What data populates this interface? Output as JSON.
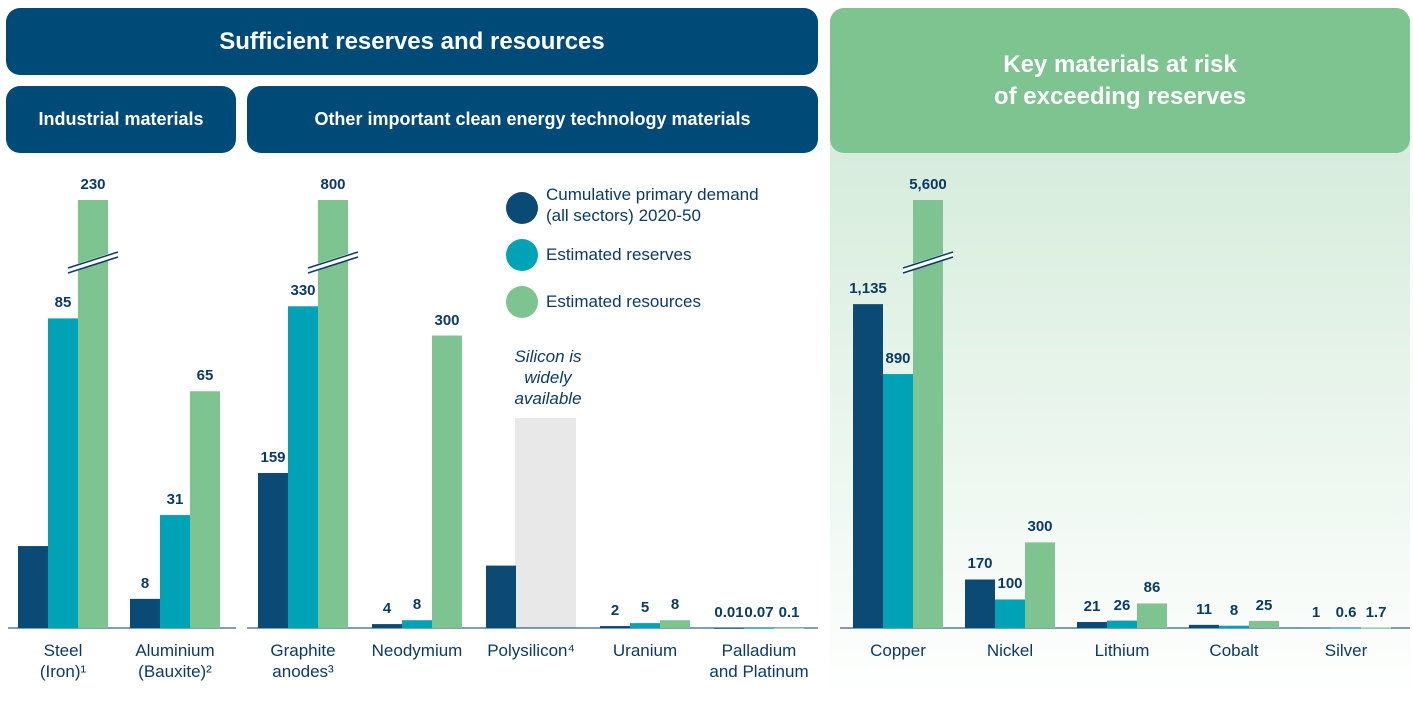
{
  "chart_data": {
    "type": "bar",
    "group_title": "Sufficient reserves and resources",
    "series": [
      {
        "name": "Cumulative primary demand\n(all sectors) 2020-50",
        "color": "#0a4a75",
        "values": [
          22.5,
          8,
          159,
          4,
          64,
          2,
          0.01,
          1135,
          170,
          21,
          11,
          1
        ],
        "value_labels": [
          null,
          "8",
          "159",
          "4",
          null,
          "2",
          "0.01",
          "1,135",
          "170",
          "21",
          "11",
          "1"
        ]
      },
      {
        "name": "Estimated reserves",
        "color": "#00a3b5",
        "values": [
          85,
          31,
          330,
          8,
          null,
          5,
          0.07,
          890,
          100,
          26,
          8,
          0.6
        ],
        "value_labels": [
          "85",
          "31",
          "330",
          "8",
          null,
          "5",
          "0.07",
          "890",
          "100",
          "26",
          "8",
          "0.6"
        ]
      },
      {
        "name": "Estimated resources",
        "color": "#7ec491",
        "values": [
          230,
          65,
          800,
          300,
          null,
          8,
          0.1,
          5600,
          300,
          86,
          25,
          1.7
        ],
        "value_labels": [
          "230",
          "65",
          "800",
          "300",
          null,
          "8",
          "0.1",
          "5,600",
          "300",
          "86",
          "25",
          "1.7"
        ]
      }
    ],
    "panels": [
      {
        "title": "Industrial materials",
        "ylim": [
          0,
          117.5
        ],
        "categories": [
          "Steel\n(Iron)¹",
          "Aluminium\n(Bauxite)²"
        ]
      },
      {
        "title": "Other important clean energy technology materials",
        "ylim": [
          0,
          439
        ],
        "categories": [
          "Graphite\nanodes³",
          "Neodymium",
          "Polysilicon⁴",
          "Uranium",
          "Palladium\nand Platinum"
        ],
        "note": "Silicon is\nwidely\navailable"
      },
      {
        "title": "Key materials at risk\nof exceeding reserves",
        "ylim": [
          0,
          1500
        ],
        "categories": [
          "Copper",
          "Nickel",
          "Lithium",
          "Cobalt",
          "Silver"
        ]
      }
    ],
    "axis_break": true
  }
}
